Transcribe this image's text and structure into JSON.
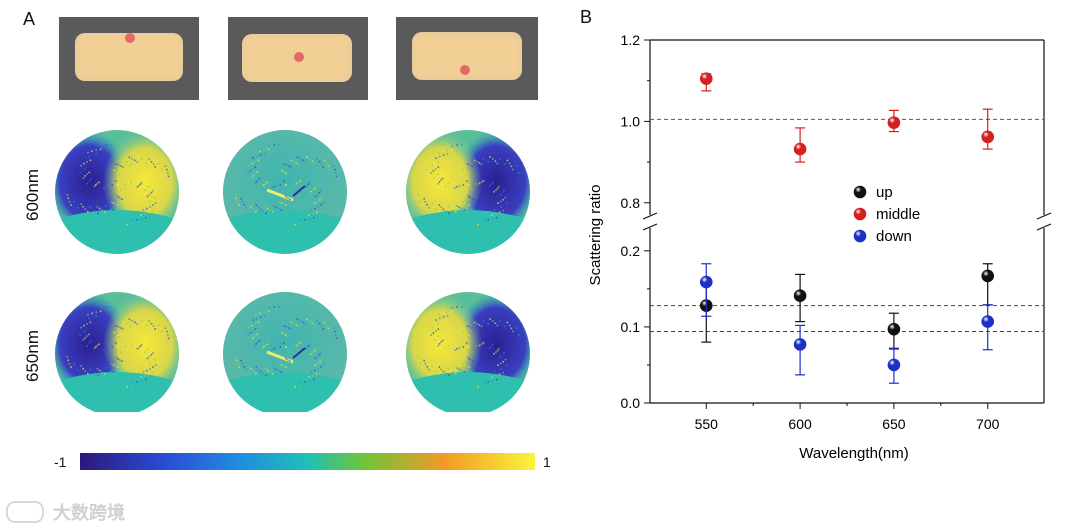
{
  "panel_a": {
    "label": "A",
    "row_labels": [
      "600nm",
      "650nm"
    ],
    "spot_positions": [
      "up",
      "middle",
      "down"
    ],
    "colorbar": {
      "min_label": "-1",
      "max_label": "1"
    }
  },
  "panel_b": {
    "label": "B"
  },
  "chart_data": {
    "type": "scatter",
    "title": "",
    "xlabel": "Wavelength(nm)",
    "ylabel": "Scattering ratio",
    "x": [
      550,
      600,
      650,
      700
    ],
    "xticks": [
      "550",
      "600",
      "650",
      "700"
    ],
    "xlim": [
      520,
      730
    ],
    "axis_break": true,
    "upper_ylim": [
      0.77,
      1.2
    ],
    "upper_yticks": [
      "0.8",
      "1.0",
      "1.2"
    ],
    "lower_ylim": [
      0.0,
      0.23
    ],
    "lower_yticks": [
      "0.0",
      "0.1",
      "0.2"
    ],
    "series": [
      {
        "name": "up",
        "color": "#111111",
        "values": [
          0.128,
          0.141,
          0.097,
          0.167
        ],
        "err_low": [
          0.048,
          0.034,
          0.026,
          0.038
        ],
        "err_high": [
          0.03,
          0.028,
          0.021,
          0.016
        ]
      },
      {
        "name": "middle",
        "color": "#d42020",
        "values": [
          1.105,
          0.932,
          0.997,
          0.962
        ],
        "err_low": [
          0.03,
          0.032,
          0.022,
          0.03
        ],
        "err_high": [
          0.012,
          0.052,
          0.03,
          0.068
        ]
      },
      {
        "name": "down",
        "color": "#1e2fc8",
        "values": [
          0.159,
          0.077,
          0.05,
          0.107
        ],
        "err_low": [
          0.045,
          0.04,
          0.024,
          0.037
        ],
        "err_high": [
          0.024,
          0.025,
          0.022,
          0.022
        ]
      }
    ],
    "reference_lines": [
      {
        "axis": "upper",
        "value": 1.005,
        "color": "#d42020"
      },
      {
        "axis": "lower",
        "value": 0.128,
        "color": "#444444"
      },
      {
        "axis": "lower",
        "value": 0.094,
        "color": "#444444"
      }
    ],
    "legend": {
      "position": "center",
      "entries": [
        "up",
        "middle",
        "down"
      ]
    }
  },
  "watermark": {
    "text": "大数跨境"
  }
}
